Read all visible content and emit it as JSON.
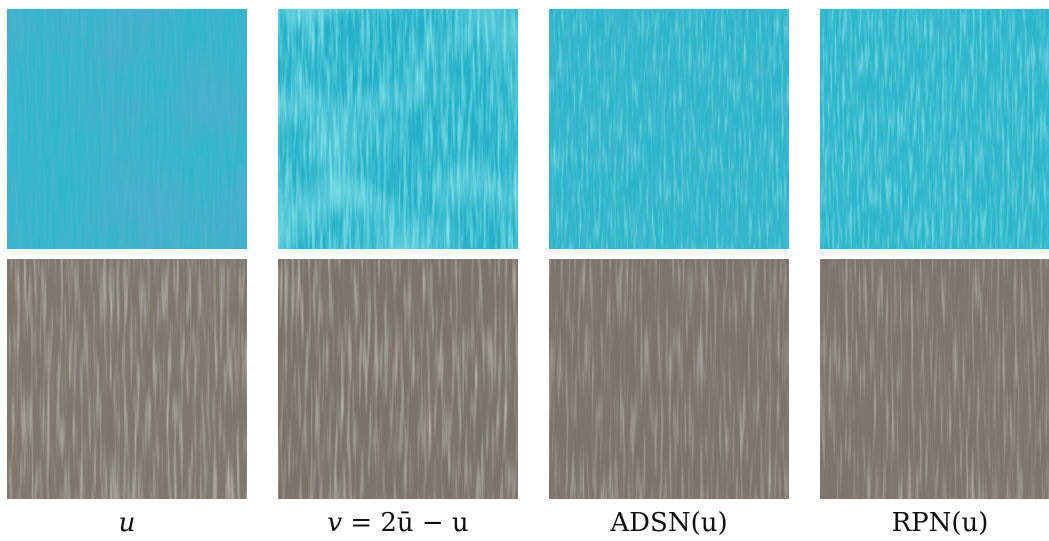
{
  "figure": {
    "rows": [
      {
        "texture": "cyan-fabric",
        "base_color": "#2db8cc",
        "dark_color": "#1a78a8",
        "light_color": "#5fe3ea"
      },
      {
        "texture": "brown-bark",
        "base_color": "#7d746b",
        "dark_color": "#3f3731",
        "light_color": "#b5ada3"
      }
    ],
    "columns": [
      {
        "caption_var": "u",
        "caption_rest": ""
      },
      {
        "caption_var": "v",
        "caption_rest": " = 2ū − u"
      },
      {
        "caption_var": "",
        "caption_rest": "ADSN(u)"
      },
      {
        "caption_var": "",
        "caption_rest": "RPN(u)"
      }
    ]
  }
}
